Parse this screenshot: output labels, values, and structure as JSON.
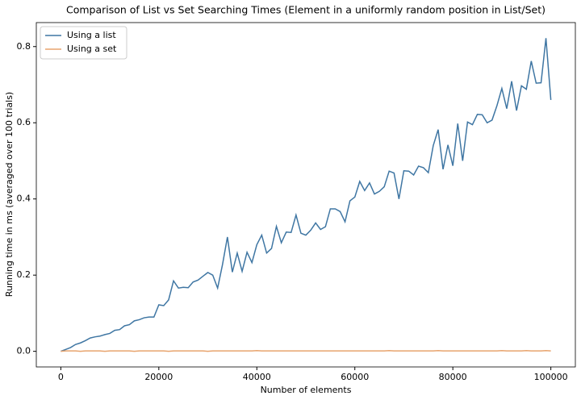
{
  "chart_data": {
    "type": "line",
    "title": "Comparison of List vs Set Searching Times (Element in a uniformly random position in List/Set)",
    "xlabel": "Number of elements",
    "ylabel": "Running time in ms (averaged over 100 trials)",
    "x": [
      0,
      1000,
      2000,
      3000,
      4000,
      5000,
      6000,
      7000,
      8000,
      9000,
      10000,
      11000,
      12000,
      13000,
      14000,
      15000,
      16000,
      17000,
      18000,
      19000,
      20000,
      21000,
      22000,
      23000,
      24000,
      25000,
      26000,
      27000,
      28000,
      29000,
      30000,
      31000,
      32000,
      33000,
      34000,
      35000,
      36000,
      37000,
      38000,
      39000,
      40000,
      41000,
      42000,
      43000,
      44000,
      45000,
      46000,
      47000,
      48000,
      49000,
      50000,
      51000,
      52000,
      53000,
      54000,
      55000,
      56000,
      57000,
      58000,
      59000,
      60000,
      61000,
      62000,
      63000,
      64000,
      65000,
      66000,
      67000,
      68000,
      69000,
      70000,
      71000,
      72000,
      73000,
      74000,
      75000,
      76000,
      77000,
      78000,
      79000,
      80000,
      81000,
      82000,
      83000,
      84000,
      85000,
      86000,
      87000,
      88000,
      89000,
      90000,
      91000,
      92000,
      93000,
      94000,
      95000,
      96000,
      97000,
      98000,
      99000,
      100000
    ],
    "series": [
      {
        "name": "Using a list",
        "color": "#3f76a3",
        "values": [
          0.0,
          0.005,
          0.01,
          0.018,
          0.022,
          0.028,
          0.035,
          0.038,
          0.04,
          0.044,
          0.047,
          0.055,
          0.057,
          0.067,
          0.07,
          0.08,
          0.083,
          0.088,
          0.09,
          0.09,
          0.122,
          0.12,
          0.135,
          0.185,
          0.166,
          0.168,
          0.167,
          0.182,
          0.187,
          0.197,
          0.207,
          0.2,
          0.166,
          0.228,
          0.3,
          0.208,
          0.258,
          0.21,
          0.26,
          0.233,
          0.28,
          0.305,
          0.258,
          0.27,
          0.328,
          0.285,
          0.313,
          0.312,
          0.358,
          0.31,
          0.305,
          0.318,
          0.337,
          0.32,
          0.327,
          0.374,
          0.374,
          0.367,
          0.34,
          0.395,
          0.405,
          0.446,
          0.422,
          0.442,
          0.413,
          0.42,
          0.432,
          0.473,
          0.468,
          0.4,
          0.474,
          0.473,
          0.463,
          0.486,
          0.482,
          0.469,
          0.54,
          0.582,
          0.478,
          0.542,
          0.487,
          0.598,
          0.5,
          0.602,
          0.595,
          0.622,
          0.621,
          0.6,
          0.607,
          0.645,
          0.69,
          0.637,
          0.709,
          0.632,
          0.697,
          0.688,
          0.762,
          0.704,
          0.705,
          0.822,
          0.66
        ]
      },
      {
        "name": "Using a set",
        "color": "#e8a46e",
        "values": [
          0.0,
          0.001,
          0.001,
          0.001,
          0.0,
          0.001,
          0.001,
          0.001,
          0.001,
          0.0,
          0.001,
          0.001,
          0.001,
          0.001,
          0.001,
          0.0,
          0.001,
          0.001,
          0.001,
          0.001,
          0.001,
          0.001,
          0.0,
          0.001,
          0.001,
          0.001,
          0.001,
          0.001,
          0.001,
          0.001,
          0.0,
          0.001,
          0.001,
          0.001,
          0.001,
          0.001,
          0.001,
          0.001,
          0.001,
          0.001,
          0.002,
          0.001,
          0.001,
          0.001,
          0.001,
          0.001,
          0.001,
          0.001,
          0.001,
          0.001,
          0.001,
          0.001,
          0.001,
          0.001,
          0.001,
          0.001,
          0.001,
          0.001,
          0.001,
          0.001,
          0.001,
          0.001,
          0.001,
          0.001,
          0.001,
          0.001,
          0.001,
          0.002,
          0.001,
          0.001,
          0.001,
          0.001,
          0.001,
          0.001,
          0.001,
          0.001,
          0.001,
          0.002,
          0.001,
          0.001,
          0.001,
          0.001,
          0.001,
          0.001,
          0.001,
          0.001,
          0.001,
          0.001,
          0.001,
          0.001,
          0.002,
          0.001,
          0.001,
          0.001,
          0.001,
          0.002,
          0.001,
          0.001,
          0.001,
          0.002,
          0.001
        ]
      }
    ],
    "xlim": [
      -5000,
      105000
    ],
    "ylim": [
      -0.041,
      0.863
    ],
    "xticks": [
      0,
      20000,
      40000,
      60000,
      80000,
      100000
    ],
    "yticks": [
      {
        "value": 0,
        "label": "0.0"
      },
      0.2,
      0.4,
      0.6,
      0.8
    ],
    "legend": "upper left"
  }
}
